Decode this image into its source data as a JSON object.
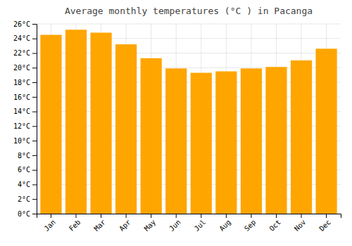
{
  "chart_data": {
    "type": "bar",
    "title": "Average monthly temperatures (°C ) in Pacanga",
    "categories": [
      "Jan",
      "Feb",
      "Mar",
      "Apr",
      "May",
      "Jun",
      "Jul",
      "Aug",
      "Sep",
      "Oct",
      "Nov",
      "Dec"
    ],
    "values": [
      24.5,
      25.2,
      24.8,
      23.2,
      21.3,
      19.9,
      19.3,
      19.5,
      19.9,
      20.1,
      21.0,
      22.6
    ],
    "color": "#FFA500",
    "ylim": [
      0,
      26
    ],
    "yticks": [
      {
        "value": 0,
        "label": "0°C"
      },
      {
        "value": 2,
        "label": "2°C"
      },
      {
        "value": 4,
        "label": "4°C"
      },
      {
        "value": 6,
        "label": "6°C"
      },
      {
        "value": 8,
        "label": "8°C"
      },
      {
        "value": 10,
        "label": "10°C"
      },
      {
        "value": 12,
        "label": "12°C"
      },
      {
        "value": 14,
        "label": "14°C"
      },
      {
        "value": 16,
        "label": "16°C"
      },
      {
        "value": 18,
        "label": "18°C"
      },
      {
        "value": 20,
        "label": "20°C"
      },
      {
        "value": 22,
        "label": "22°C"
      },
      {
        "value": 24,
        "label": "24°C"
      },
      {
        "value": 26,
        "label": "26°C"
      }
    ],
    "grid": true
  }
}
